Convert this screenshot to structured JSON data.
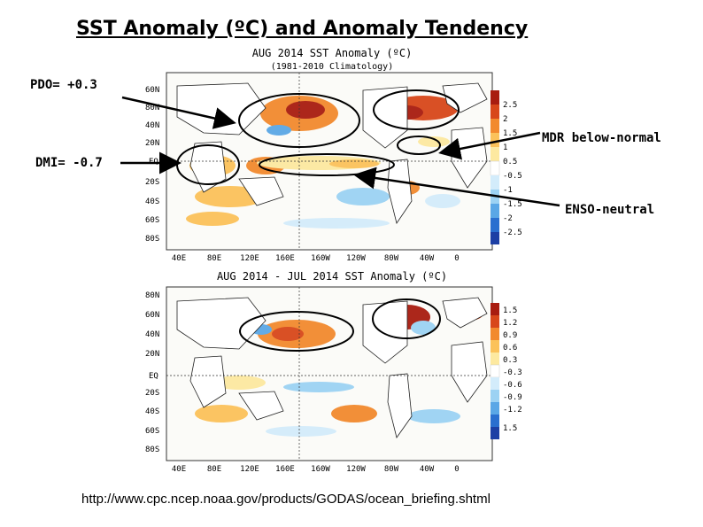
{
  "slide": {
    "title": "SST Anomaly (ºC) and Anomaly Tendency",
    "source_url": "http://www.cpc.ncep.noaa.gov/products/GODAS/ocean_briefing.shtml"
  },
  "annotations": {
    "pdo": "PDO= +0.3",
    "dmi": "DMI= -0.7",
    "mdr": "MDR below-normal",
    "enso": "ENSO-neutral"
  },
  "map_top": {
    "title": "AUG 2014 SST Anomaly (ºC)",
    "subtitle": "(1981-2010 Climatology)",
    "lat_labels": [
      "60N",
      "40N",
      "20N",
      "EQ",
      "20S",
      "40S",
      "60S",
      "80S"
    ],
    "lat_labels_side": [
      "80N"
    ],
    "lon_labels": [
      "40E",
      "80E",
      "120E",
      "160E",
      "160W",
      "120W",
      "80W",
      "40W",
      "0"
    ],
    "colorbar": [
      "2.5",
      "2",
      "1.5",
      "1",
      "0.5",
      "-0.5",
      "-1",
      "-1.5",
      "-2",
      "-2.5"
    ]
  },
  "map_bottom": {
    "title": "AUG 2014 - JUL 2014 SST Anomaly (ºC)",
    "lat_labels": [
      "80N",
      "60N",
      "40N",
      "20N",
      "EQ",
      "20S",
      "40S",
      "60S",
      "80S"
    ],
    "lon_labels": [
      "40E",
      "80E",
      "120E",
      "160E",
      "160W",
      "120W",
      "80W",
      "40W",
      "0"
    ],
    "colorbar": [
      "1.5",
      "1.2",
      "0.9",
      "0.6",
      "0.3",
      "-0.3",
      "-0.6",
      "-0.9",
      "-1.2",
      "1.5"
    ]
  },
  "colors": {
    "land": "#ffffff",
    "warm": [
      "#fde9a0",
      "#fbc25a",
      "#f28a2e",
      "#d8471a",
      "#a81c10"
    ],
    "cool": [
      "#d3ecfb",
      "#9cd2f3",
      "#5aa7e6",
      "#2a6fcf",
      "#1c3fa4"
    ]
  }
}
